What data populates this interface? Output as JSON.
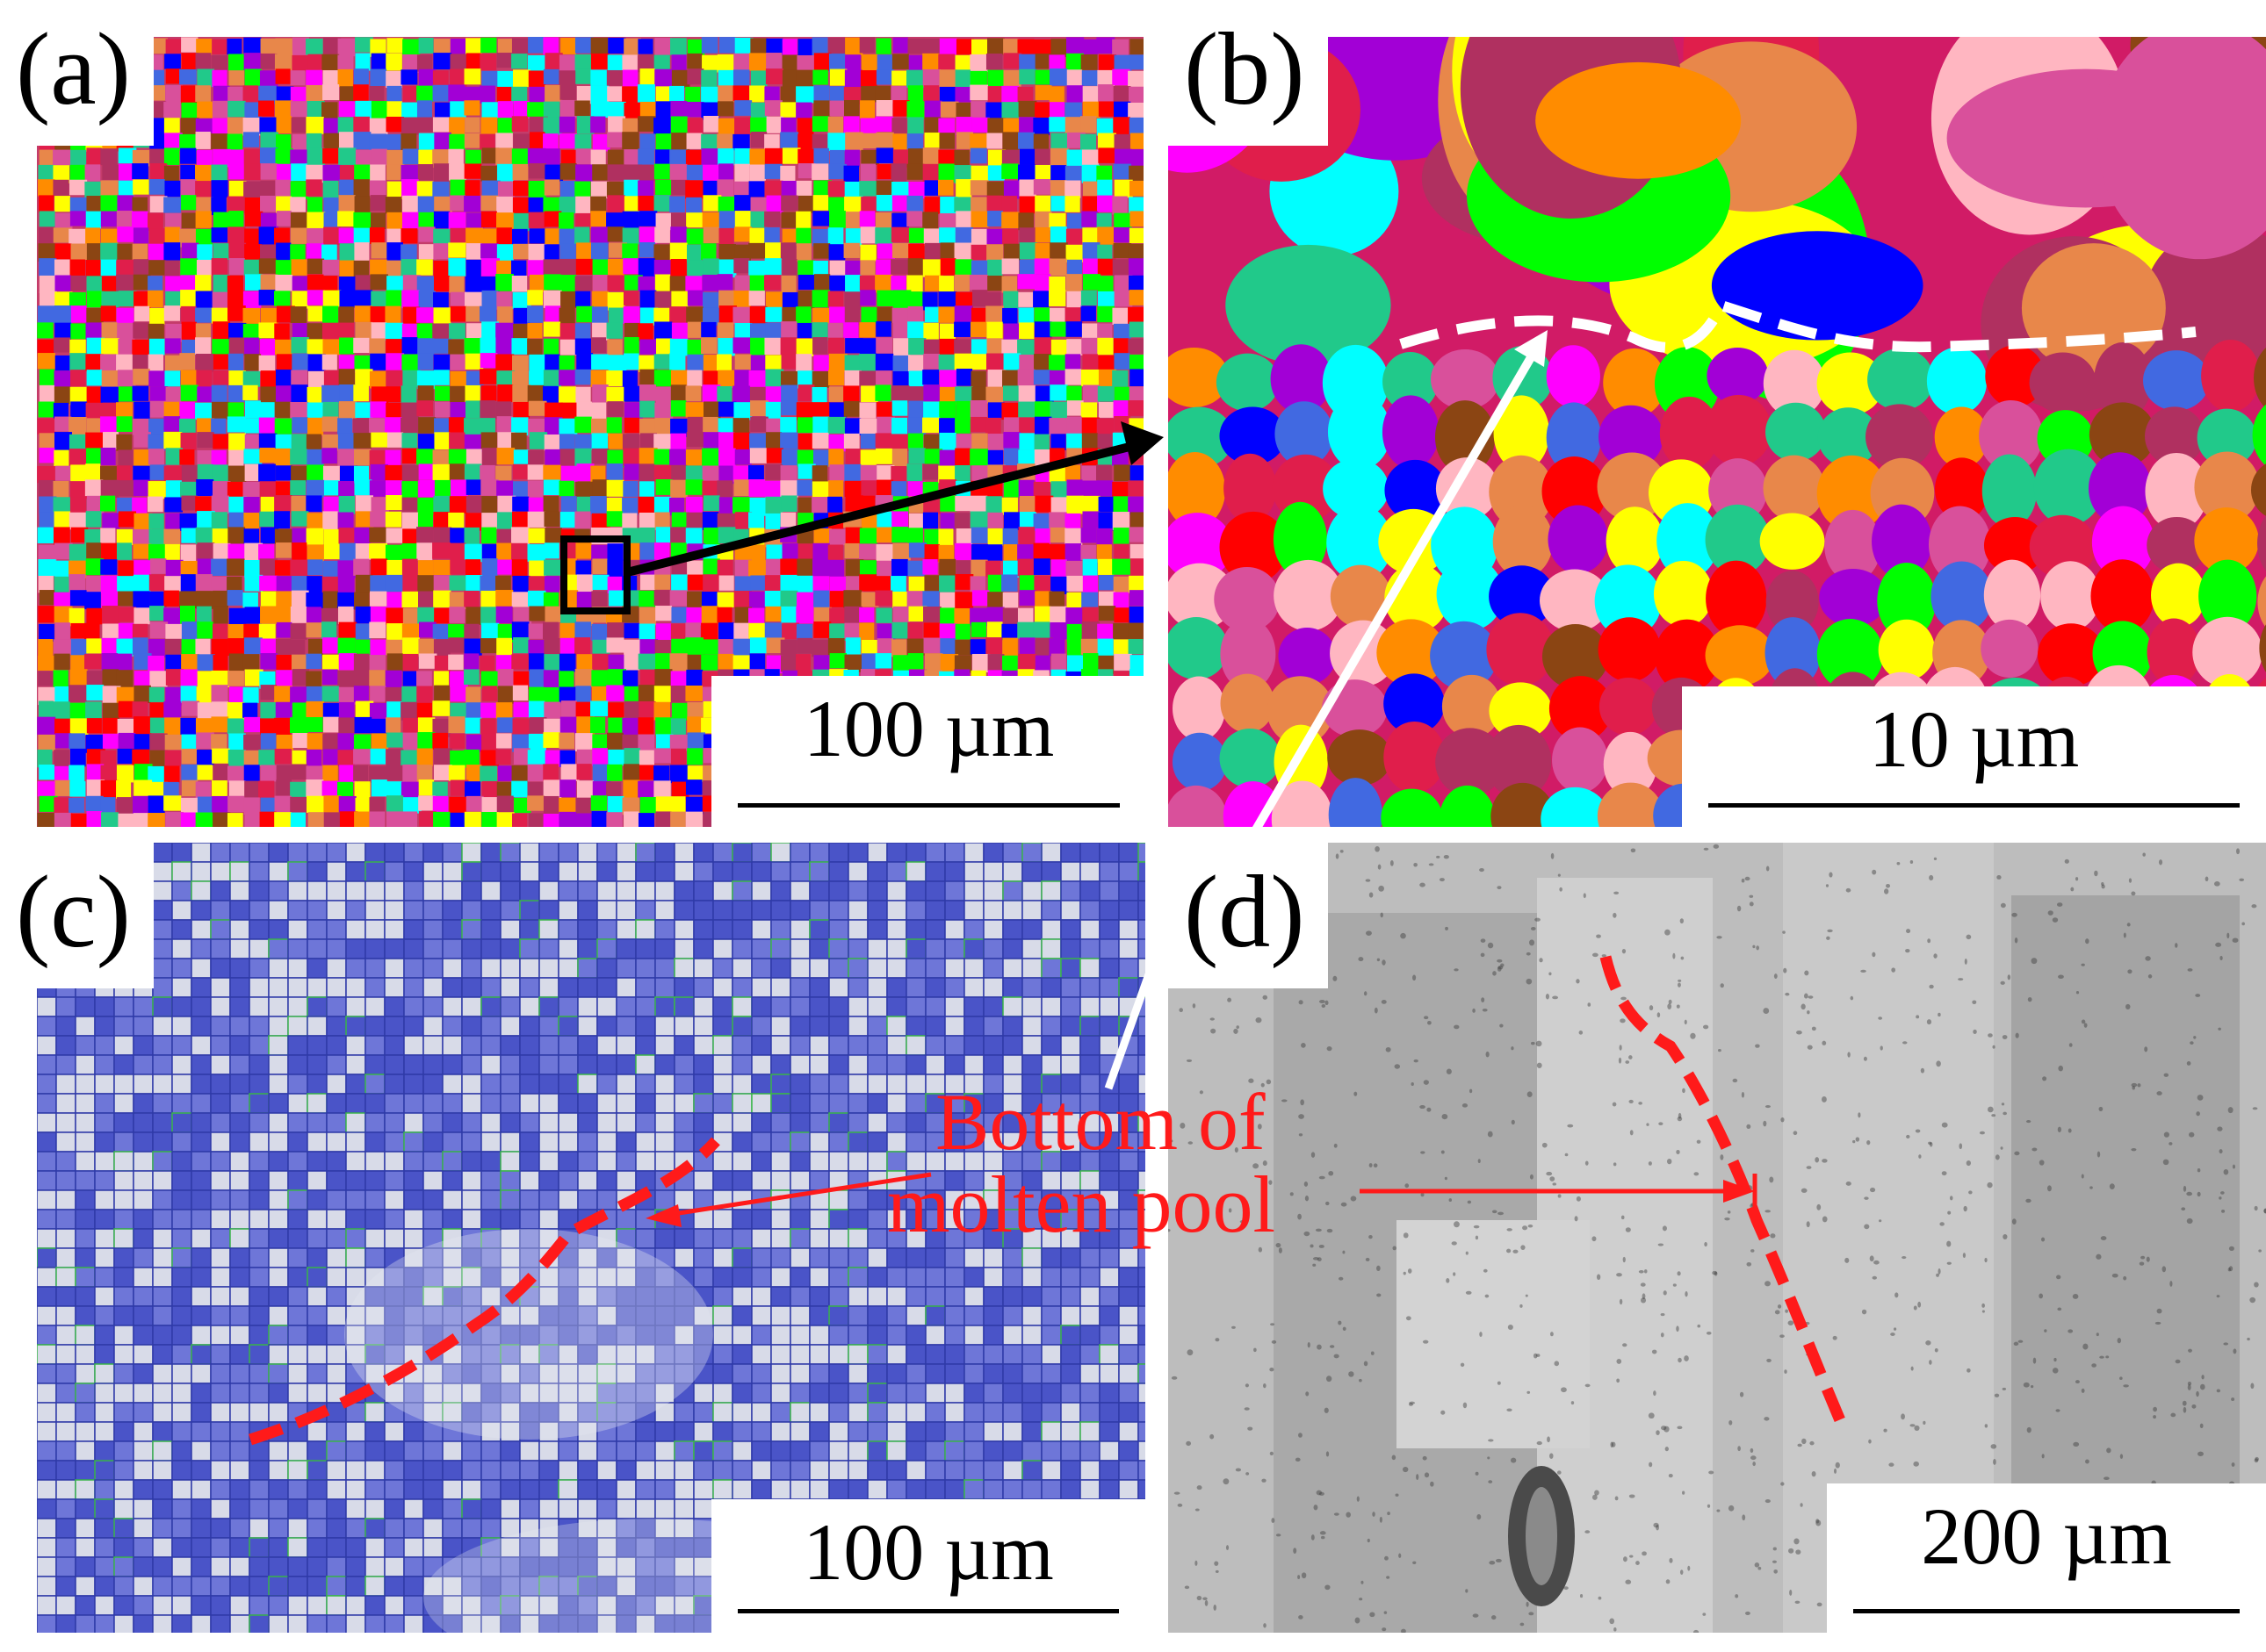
{
  "panels": {
    "a": {
      "label": "(a)",
      "scale_bar": "100 µm"
    },
    "b": {
      "label": "(b)",
      "scale_bar": "10 µm"
    },
    "c": {
      "label": "(c)",
      "scale_bar": "100 µm"
    },
    "d": {
      "label": "(d)",
      "scale_bar": "200 µm"
    }
  },
  "annotation": {
    "line1": "Bottom of",
    "line2": "molten pool"
  },
  "colors": {
    "ebsd_palette": [
      "#ff0000",
      "#ff00ff",
      "#00ffff",
      "#ffff00",
      "#0000ff",
      "#00ff00",
      "#e01e4b",
      "#d9509b",
      "#e8874a",
      "#21c98a",
      "#a200d6",
      "#ff8c00",
      "#b03060",
      "#ffb6c1",
      "#4169e1",
      "#8b4513"
    ],
    "grain_boundary_map": "#3a46c8",
    "dashed_boundary_b": "#ffffff",
    "dashed_boundary_cd": "#ff1a1a",
    "optical_gray": "#bdbdbd"
  }
}
